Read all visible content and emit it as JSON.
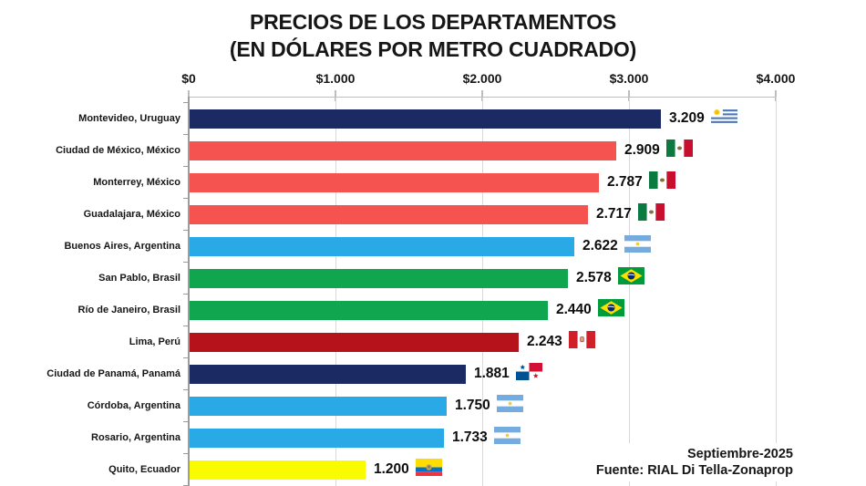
{
  "title": {
    "line1": "PRECIOS DE LOS DEPARTAMENTOS",
    "line2": "(EN DÓLARES POR METRO CUADRADO)"
  },
  "source": {
    "line1": "Septiembre-2025",
    "line2": "Fuente: RIAL Di Tella-Zonaprop"
  },
  "chart_data": {
    "type": "bar",
    "orientation": "horizontal",
    "title": "PRECIOS DE LOS DEPARTAMENTOS (EN DÓLARES POR METRO CUADRADO)",
    "xlabel": "",
    "ylabel": "",
    "xlim": [
      0,
      4000
    ],
    "grid": true,
    "legend": false,
    "x_tick_labels": [
      "$0",
      "$1.000",
      "$2.000",
      "$3.000",
      "$4.000"
    ],
    "categories": [
      "Montevideo, Uruguay",
      "Ciudad de México, México",
      "Monterrey, México",
      "Guadalajara, México",
      "Buenos Aires, Argentina",
      "San Pablo, Brasil",
      "Río de Janeiro, Brasil",
      "Lima, Perú",
      "Ciudad de Panamá, Panamá",
      "Córdoba, Argentina",
      "Rosario, Argentina",
      "Quito, Ecuador"
    ],
    "values": [
      3209,
      2909,
      2787,
      2717,
      2622,
      2578,
      2440,
      2243,
      1881,
      1750,
      1733,
      1200
    ],
    "value_labels": [
      "3.209",
      "2.909",
      "2.787",
      "2.717",
      "2.622",
      "2.578",
      "2.440",
      "2.243",
      "1.881",
      "1.750",
      "1.733",
      "1.200"
    ],
    "bar_colors": [
      "#1B2A63",
      "#F4534F",
      "#F4534F",
      "#F4534F",
      "#29A9E6",
      "#10A64F",
      "#10A64F",
      "#B5121B",
      "#1B2A63",
      "#29A9E6",
      "#29A9E6",
      "#FAFA00"
    ],
    "flags": [
      "uruguay",
      "mexico",
      "mexico",
      "mexico",
      "argentina",
      "brazil",
      "brazil",
      "peru",
      "panama",
      "argentina",
      "argentina",
      "ecuador"
    ]
  },
  "flag_icon_names": [
    "flag-uruguay-icon",
    "flag-mexico-icon",
    "flag-argentina-icon",
    "flag-brazil-icon",
    "flag-peru-icon",
    "flag-panama-icon",
    "flag-ecuador-icon"
  ],
  "colors": {
    "background": "#FFFFFF",
    "gridline": "#D9D9D9",
    "axis": "#BDBDBD",
    "text": "#161616",
    "bar_navy": "#1B2A63",
    "bar_salmon": "#F4534F",
    "bar_lightblue": "#29A9E6",
    "bar_green": "#10A64F",
    "bar_darkred": "#B5121B",
    "bar_yellow": "#FAFA00"
  }
}
